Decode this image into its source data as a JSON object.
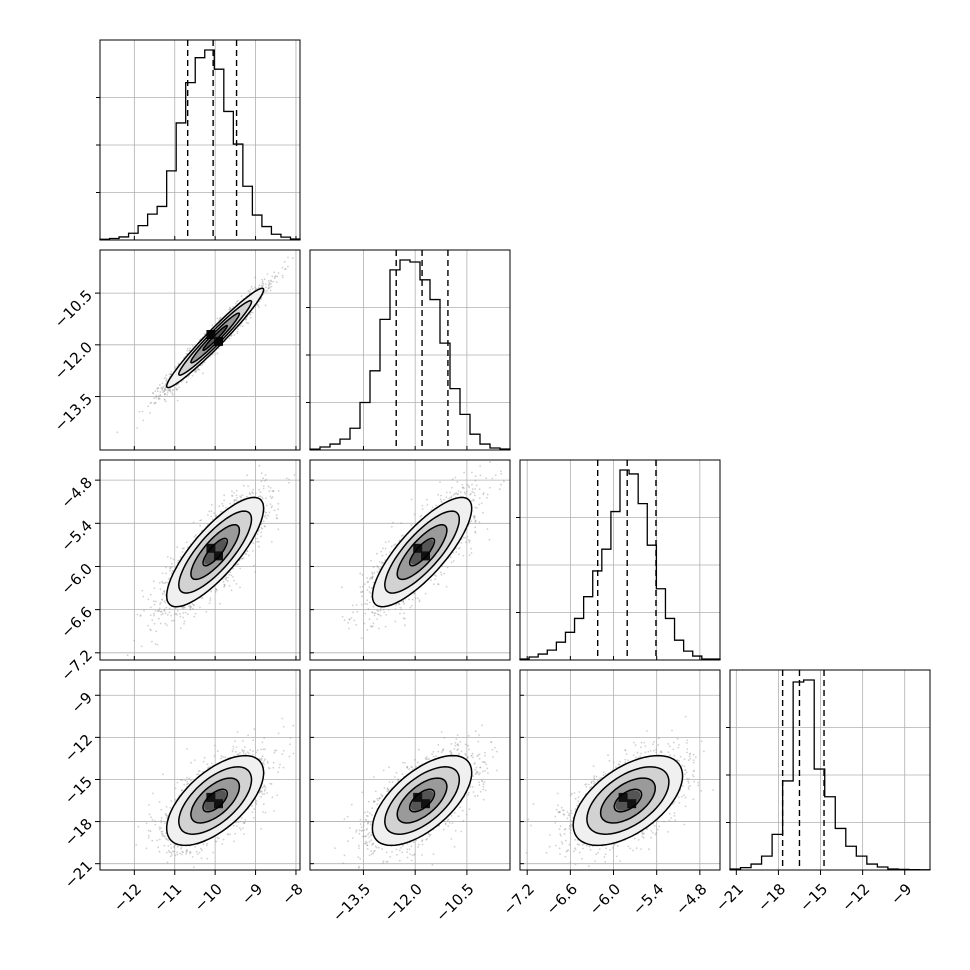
{
  "chart_data": {
    "type": "corner",
    "parameters": [
      {
        "ticks": [
          -12,
          -11,
          -10,
          -9,
          -8
        ],
        "tick_labels": [
          "−12",
          "−11",
          "−10",
          "−9",
          "−8"
        ],
        "range": [
          -12.85,
          -7.9
        ],
        "quantiles": [
          -10.68,
          -10.05,
          -9.47
        ],
        "peak": -10.0,
        "sd": 0.6,
        "hist": [
          0.4,
          0.8,
          1.6,
          3.5,
          7.5,
          13.5,
          17.5,
          36,
          61,
          82,
          95,
          99,
          89,
          67,
          50,
          28,
          13,
          7,
          3,
          1.5,
          0.5
        ]
      },
      {
        "ticks": [
          -13.5,
          -12.0,
          -10.5
        ],
        "tick_labels": [
          "−13.5",
          "−12.0",
          "−10.5"
        ],
        "range": [
          -15.05,
          -9.25
        ],
        "quantiles": [
          -12.55,
          -11.8,
          -11.05
        ],
        "peak": -11.8,
        "sd": 0.72,
        "hist": [
          0.4,
          1.5,
          3,
          5.5,
          11,
          24,
          40,
          66,
          91,
          96,
          95,
          86,
          76,
          54,
          31,
          18,
          8,
          3,
          1,
          0.5
        ]
      },
      {
        "ticks": [
          -7.2,
          -6.6,
          -6.0,
          -5.4,
          -4.8
        ],
        "tick_labels": [
          "−7.2",
          "−6.6",
          "−6.0",
          "−5.4",
          "−4.8"
        ],
        "range": [
          -7.3,
          -4.52
        ],
        "quantiles": [
          -6.22,
          -5.81,
          -5.41
        ],
        "peak": -5.8,
        "sd": 0.38,
        "hist": [
          0.5,
          1.5,
          3,
          5,
          9,
          14,
          21,
          32,
          45,
          56,
          75,
          96,
          94,
          79,
          58,
          36,
          21,
          10,
          4.5,
          2,
          0.5,
          0.5
        ]
      },
      {
        "ticks": [
          -21,
          -18,
          -15,
          -12,
          -9
        ],
        "tick_labels": [
          "−21",
          "−18",
          "−15",
          "−12",
          "−9"
        ],
        "range": [
          -21.45,
          -7.2
        ],
        "quantiles": [
          -17.7,
          -16.5,
          -14.75
        ],
        "peak": -16.5,
        "sd": 1.6,
        "hist": [
          0.5,
          1.2,
          3,
          7,
          18,
          45,
          95,
          96,
          51,
          37,
          21,
          12,
          7,
          3,
          1.5,
          0.5,
          0.3,
          0.2,
          0.1
        ]
      }
    ],
    "correlations": [
      [
        1.0,
        0.97,
        0.8,
        0.62
      ],
      [
        0.97,
        1.0,
        0.8,
        0.62
      ],
      [
        0.8,
        0.8,
        1.0,
        0.55
      ],
      [
        0.62,
        0.62,
        0.55,
        1.0
      ]
    ],
    "contour_levels_sigma": [
      0.5,
      1.0,
      1.5,
      2.0
    ],
    "grid": true,
    "colors": {
      "ink": "#000000",
      "grid": "#b0b0b0",
      "points": "#9a9a9a"
    }
  }
}
